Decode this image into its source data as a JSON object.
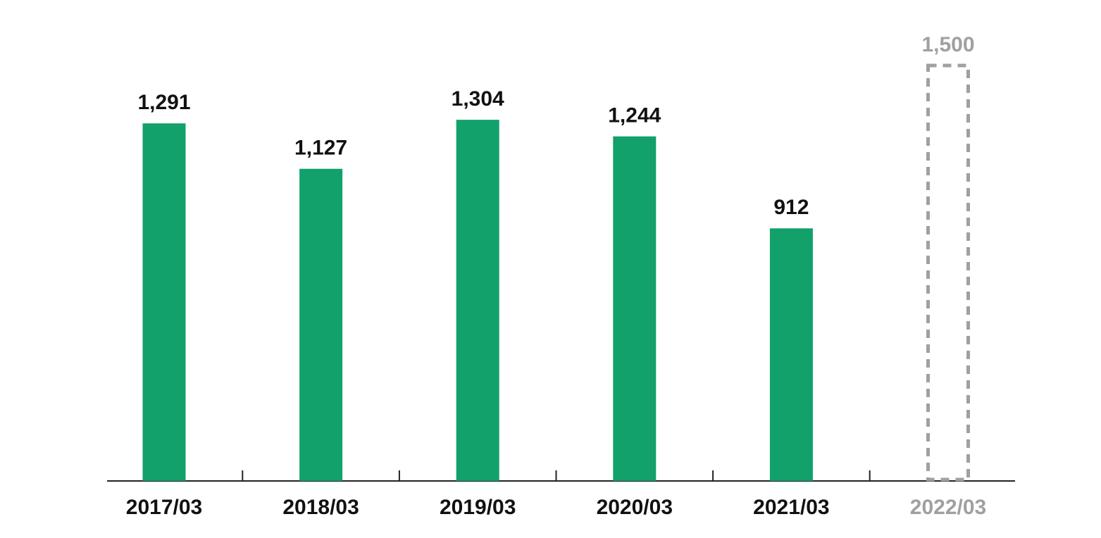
{
  "chart_data": {
    "type": "bar",
    "categories": [
      "2017/03",
      "2018/03",
      "2019/03",
      "2020/03",
      "2021/03",
      "2022/03"
    ],
    "values": [
      1291,
      1127,
      1304,
      1244,
      912,
      1500
    ],
    "value_labels": [
      "1,291",
      "1,127",
      "1,304",
      "1,244",
      "912",
      "1,500"
    ],
    "colors": [
      "#12a06b",
      "#12a06b",
      "#12a06b",
      "#12a06b",
      "#12a06b",
      "#a0a0a0"
    ],
    "styles": [
      "solid",
      "solid",
      "solid",
      "solid",
      "solid",
      "dashed"
    ]
  }
}
